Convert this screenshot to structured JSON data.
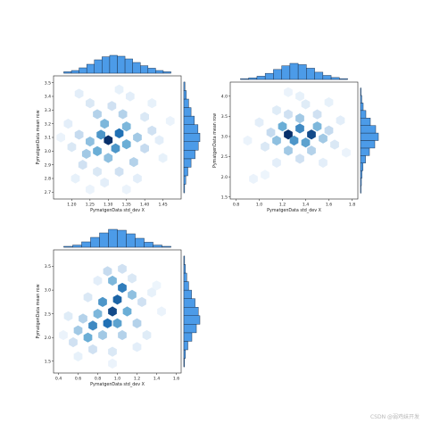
{
  "watermark": "CSDN @弱鸡妹开发",
  "chart_data": [
    {
      "type": "hexbin",
      "xlabel": "PymatgenData std_dev X",
      "ylabel": "PymatgenData mean row",
      "xlim": [
        1.15,
        1.5
      ],
      "ylim": [
        2.65,
        3.55
      ],
      "xticks": [
        1.2,
        1.25,
        1.3,
        1.35,
        1.4,
        1.45
      ],
      "yticks": [
        2.7,
        2.8,
        2.9,
        3.0,
        3.1,
        3.2,
        3.3,
        3.4,
        3.5
      ],
      "xtick_labels": [
        "1.20",
        "1.25",
        "1.30",
        "1.35",
        "1.40",
        "1.45"
      ],
      "ytick_labels": [
        "2.7",
        "2.8",
        "2.9",
        "3.0",
        "3.1",
        "3.2",
        "3.3",
        "3.4",
        "3.5"
      ],
      "hex_columns": 15,
      "cells": [
        [
          1.3,
          3.08,
          1.0
        ],
        [
          1.33,
          3.13,
          0.75
        ],
        [
          1.28,
          3.12,
          0.6
        ],
        [
          1.32,
          3.02,
          0.6
        ],
        [
          1.27,
          3.0,
          0.5
        ],
        [
          1.35,
          3.05,
          0.5
        ],
        [
          1.29,
          3.2,
          0.45
        ],
        [
          1.35,
          3.18,
          0.45
        ],
        [
          1.25,
          3.07,
          0.4
        ],
        [
          1.38,
          3.1,
          0.35
        ],
        [
          1.3,
          2.95,
          0.4
        ],
        [
          1.24,
          2.98,
          0.35
        ],
        [
          1.34,
          3.27,
          0.3
        ],
        [
          1.27,
          3.27,
          0.3
        ],
        [
          1.22,
          3.12,
          0.25
        ],
        [
          1.4,
          3.02,
          0.25
        ],
        [
          1.37,
          2.92,
          0.3
        ],
        [
          1.23,
          2.9,
          0.2
        ],
        [
          1.31,
          3.33,
          0.2
        ],
        [
          1.42,
          3.15,
          0.2
        ],
        [
          1.25,
          3.35,
          0.15
        ],
        [
          1.2,
          3.03,
          0.15
        ],
        [
          1.33,
          2.85,
          0.2
        ],
        [
          1.27,
          2.85,
          0.15
        ],
        [
          1.4,
          3.25,
          0.15
        ],
        [
          1.19,
          3.2,
          0.1
        ],
        [
          1.44,
          3.08,
          0.1
        ],
        [
          1.36,
          3.4,
          0.1
        ],
        [
          1.22,
          3.42,
          0.1
        ],
        [
          1.29,
          2.77,
          0.1
        ],
        [
          1.38,
          2.8,
          0.1
        ],
        [
          1.45,
          2.95,
          0.08
        ],
        [
          1.21,
          2.8,
          0.08
        ],
        [
          1.33,
          3.45,
          0.08
        ],
        [
          1.42,
          3.35,
          0.08
        ],
        [
          1.17,
          3.1,
          0.06
        ],
        [
          1.47,
          3.22,
          0.06
        ],
        [
          1.25,
          2.72,
          0.06
        ],
        [
          1.35,
          2.72,
          0.06
        ]
      ],
      "marginal_x_density": [
        0.08,
        0.15,
        0.3,
        0.5,
        0.75,
        0.92,
        1.0,
        0.95,
        0.8,
        0.6,
        0.42,
        0.28,
        0.15,
        0.08
      ],
      "marginal_y_density": [
        0.05,
        0.12,
        0.25,
        0.45,
        0.7,
        0.9,
        1.0,
        0.88,
        0.65,
        0.45,
        0.3,
        0.15,
        0.07
      ]
    },
    {
      "type": "hexbin",
      "xlabel": "PymatgenData std_dev X",
      "ylabel": "PymatgenData mean row",
      "xlim": [
        0.75,
        1.85
      ],
      "ylim": [
        1.45,
        4.35
      ],
      "xticks": [
        0.8,
        1.0,
        1.2,
        1.4,
        1.6,
        1.8
      ],
      "yticks": [
        1.5,
        2.0,
        2.5,
        3.0,
        3.5,
        4.0
      ],
      "xtick_labels": [
        "0.8",
        "1.0",
        "1.2",
        "1.4",
        "1.6",
        "1.8"
      ],
      "ytick_labels": [
        "1.5",
        "2.0",
        "2.5",
        "3.0",
        "3.5",
        "4.0"
      ],
      "hex_columns": 15,
      "cells": [
        [
          1.25,
          3.05,
          1.0
        ],
        [
          1.45,
          3.05,
          0.9
        ],
        [
          1.35,
          3.2,
          0.65
        ],
        [
          1.3,
          2.9,
          0.6
        ],
        [
          1.4,
          2.85,
          0.55
        ],
        [
          1.2,
          3.25,
          0.5
        ],
        [
          1.5,
          3.25,
          0.45
        ],
        [
          1.15,
          2.9,
          0.4
        ],
        [
          1.55,
          2.95,
          0.35
        ],
        [
          1.35,
          3.45,
          0.35
        ],
        [
          1.25,
          2.65,
          0.35
        ],
        [
          1.45,
          2.65,
          0.3
        ],
        [
          1.1,
          3.1,
          0.25
        ],
        [
          1.6,
          3.15,
          0.25
        ],
        [
          1.25,
          3.55,
          0.2
        ],
        [
          1.5,
          3.55,
          0.2
        ],
        [
          1.35,
          2.45,
          0.2
        ],
        [
          1.05,
          2.75,
          0.15
        ],
        [
          1.65,
          2.8,
          0.15
        ],
        [
          1.15,
          3.65,
          0.12
        ],
        [
          1.4,
          3.8,
          0.12
        ],
        [
          1.0,
          3.35,
          0.1
        ],
        [
          1.7,
          3.4,
          0.1
        ],
        [
          1.15,
          2.35,
          0.1
        ],
        [
          1.55,
          2.35,
          0.1
        ],
        [
          1.35,
          4.0,
          0.08
        ],
        [
          1.6,
          3.85,
          0.08
        ],
        [
          0.9,
          2.9,
          0.06
        ],
        [
          0.95,
          1.95,
          0.06
        ],
        [
          1.05,
          2.05,
          0.05
        ],
        [
          1.75,
          2.6,
          0.06
        ],
        [
          1.25,
          4.1,
          0.06
        ]
      ],
      "marginal_x_density": [
        0.05,
        0.1,
        0.2,
        0.38,
        0.62,
        0.85,
        1.0,
        0.92,
        0.7,
        0.45,
        0.25,
        0.12,
        0.05
      ],
      "marginal_y_density": [
        0.03,
        0.05,
        0.08,
        0.14,
        0.28,
        0.5,
        0.8,
        1.0,
        0.85,
        0.55,
        0.3,
        0.15,
        0.07,
        0.03
      ]
    },
    {
      "type": "hexbin",
      "xlabel": "PymatgenData std_dev X",
      "ylabel": "PymatgenData mean row",
      "xlim": [
        0.35,
        1.65
      ],
      "ylim": [
        1.25,
        3.85
      ],
      "xticks": [
        0.4,
        0.6,
        0.8,
        1.0,
        1.2,
        1.4,
        1.6
      ],
      "yticks": [
        1.5,
        2.0,
        2.5,
        3.0,
        3.5
      ],
      "xtick_labels": [
        "0.4",
        "0.6",
        "0.8",
        "1.0",
        "1.2",
        "1.4",
        "1.6"
      ],
      "ytick_labels": [
        "1.5",
        "2.0",
        "2.5",
        "3.0",
        "3.5"
      ],
      "hex_columns": 15,
      "cells": [
        [
          0.95,
          2.55,
          0.9
        ],
        [
          1.0,
          2.8,
          0.8
        ],
        [
          0.9,
          2.3,
          0.75
        ],
        [
          1.05,
          3.05,
          0.7
        ],
        [
          0.75,
          2.25,
          0.65
        ],
        [
          0.85,
          2.75,
          0.6
        ],
        [
          1.0,
          2.3,
          0.55
        ],
        [
          0.7,
          2.0,
          0.5
        ],
        [
          1.1,
          2.55,
          0.5
        ],
        [
          0.95,
          3.2,
          0.45
        ],
        [
          0.8,
          2.5,
          0.45
        ],
        [
          1.15,
          2.9,
          0.4
        ],
        [
          0.6,
          2.15,
          0.35
        ],
        [
          0.85,
          2.05,
          0.35
        ],
        [
          1.05,
          2.05,
          0.3
        ],
        [
          0.65,
          2.4,
          0.3
        ],
        [
          1.2,
          2.3,
          0.3
        ],
        [
          0.9,
          3.4,
          0.25
        ],
        [
          1.05,
          3.45,
          0.2
        ],
        [
          0.55,
          1.9,
          0.2
        ],
        [
          0.75,
          1.75,
          0.2
        ],
        [
          1.25,
          2.75,
          0.2
        ],
        [
          0.7,
          2.85,
          0.15
        ],
        [
          1.15,
          3.25,
          0.15
        ],
        [
          0.95,
          1.7,
          0.15
        ],
        [
          0.5,
          2.45,
          0.12
        ],
        [
          1.3,
          2.05,
          0.12
        ],
        [
          0.8,
          3.2,
          0.1
        ],
        [
          1.2,
          1.8,
          0.1
        ],
        [
          1.35,
          2.95,
          0.08
        ],
        [
          0.6,
          1.6,
          0.08
        ],
        [
          0.95,
          1.45,
          0.06
        ],
        [
          1.45,
          2.55,
          0.06
        ],
        [
          0.45,
          2.05,
          0.06
        ],
        [
          1.4,
          3.1,
          0.05
        ]
      ],
      "marginal_x_density": [
        0.05,
        0.12,
        0.3,
        0.55,
        0.8,
        1.0,
        0.95,
        0.75,
        0.5,
        0.28,
        0.12,
        0.05
      ],
      "marginal_y_density": [
        0.04,
        0.1,
        0.25,
        0.5,
        0.78,
        1.0,
        0.9,
        0.7,
        0.48,
        0.3,
        0.18,
        0.1,
        0.05
      ]
    }
  ]
}
